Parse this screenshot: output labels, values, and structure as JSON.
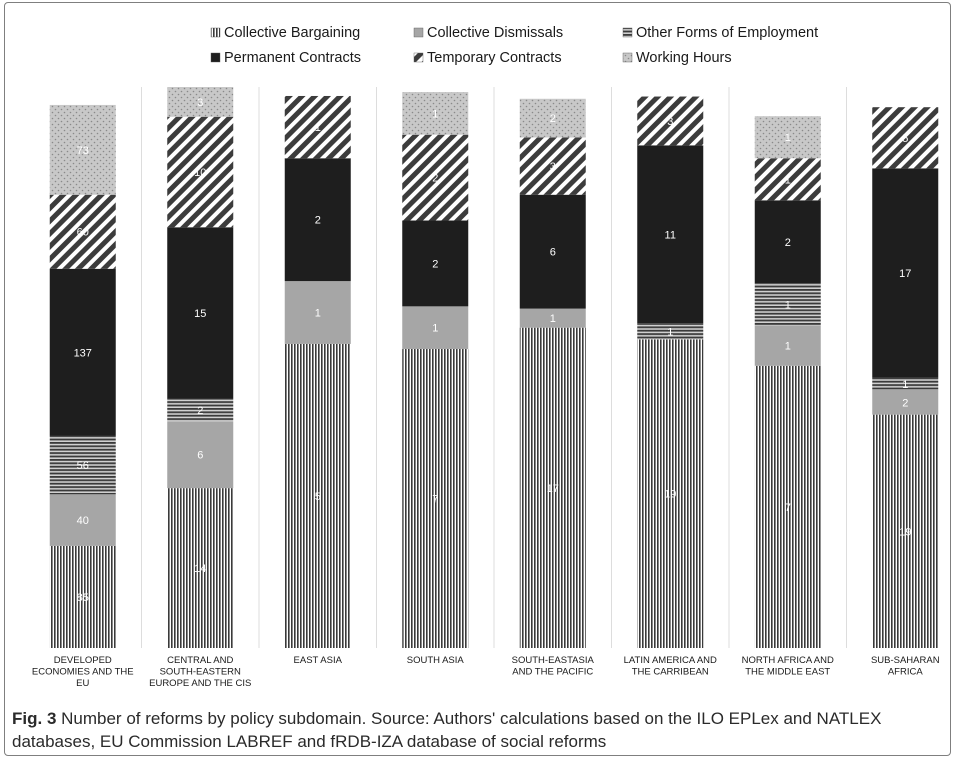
{
  "chart_data": {
    "type": "bar",
    "stacked": true,
    "legend_position": "top",
    "grid": false,
    "categories": [
      [
        "DEVELOPED",
        "ECONOMIES AND THE",
        "EU"
      ],
      [
        "CENTRAL AND",
        "SOUTH-EASTERN",
        "EUROPE AND THE CIS"
      ],
      [
        "EAST ASIA"
      ],
      [
        "SOUTH ASIA"
      ],
      [
        "SOUTH-EASTASIA",
        "AND THE PACIFIC"
      ],
      [
        "LATIN AMERICA AND",
        "THE CARRIBEAN"
      ],
      [
        "NORTH AFRICA AND",
        "THE MIDDLE EAST"
      ],
      [
        "SUB-SAHARAN",
        "AFRICA"
      ]
    ],
    "series": [
      {
        "name": "Collective Bargaining",
        "pattern": "vertical-lines",
        "values": [
          85,
          14,
          5,
          7,
          17,
          19,
          7,
          19
        ]
      },
      {
        "name": "Collective Dismissals",
        "pattern": "solid-gray",
        "values": [
          40,
          6,
          1,
          1,
          1,
          null,
          1,
          2
        ]
      },
      {
        "name": "Other Forms of Employment",
        "pattern": "horizontal-lines",
        "values": [
          56,
          2,
          null,
          null,
          null,
          1,
          1,
          1
        ]
      },
      {
        "name": "Permanent Contracts",
        "pattern": "solid-black",
        "values": [
          137,
          15,
          2,
          2,
          6,
          11,
          2,
          17
        ]
      },
      {
        "name": "Temporary Contracts",
        "pattern": "diagonal-lines",
        "values": [
          60,
          10,
          1,
          2,
          3,
          3,
          1,
          5
        ]
      },
      {
        "name": "Working Hours",
        "pattern": "dots",
        "values": [
          73,
          3,
          null,
          1,
          2,
          null,
          1,
          null
        ]
      }
    ],
    "segment_shares": [
      [
        0.182,
        0.092,
        0.104,
        0.298,
        0.132,
        0.16
      ],
      [
        0.285,
        0.119,
        0.04,
        0.306,
        0.197,
        0.053
      ],
      [
        0.542,
        0.112,
        0,
        0.219,
        0.111,
        0
      ],
      [
        0.533,
        0.076,
        0,
        0.153,
        0.153,
        0.076
      ],
      [
        0.571,
        0.034,
        0,
        0.203,
        0.102,
        0.069
      ],
      [
        0.55,
        0,
        0.029,
        0.317,
        0.087,
        0
      ],
      [
        0.503,
        0.072,
        0.075,
        0.148,
        0.075,
        0.075
      ],
      [
        0.416,
        0.044,
        0.022,
        0.373,
        0.109,
        0
      ]
    ],
    "colors": {
      "collective_bargaining_bg": "#ffffff",
      "collective_bargaining_line": "#3a3a3a",
      "collective_dismissals": "#a6a6a6",
      "other_forms_bg": "#d0d0d0",
      "other_forms_line": "#3a3a3a",
      "permanent_contracts": "#1e1e1e",
      "temporary_contracts_bg": "#ffffff",
      "temporary_contracts_line": "#3c3c3c",
      "working_hours_bg": "#c8c8c8",
      "working_hours_dot": "#8a8a8a",
      "label": "#ffffff",
      "separator": "#dddddd"
    }
  },
  "caption": {
    "fig_label": "Fig. 3",
    "text": " Number of reforms by policy subdomain. Source: Authors' calculations based on the ILO EPLex and NATLEX databases, EU Commission LABREF and fRDB-IZA database of social reforms"
  }
}
